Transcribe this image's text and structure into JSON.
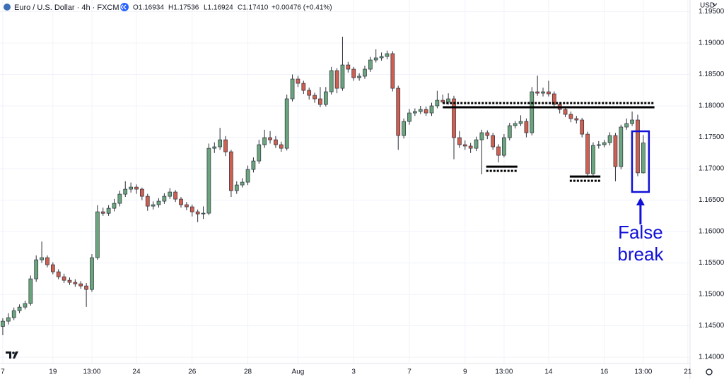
{
  "chart_data": {
    "type": "candlestick",
    "title": "Euro / U.S. Dollar · 4h · FXCM",
    "header_values": [
      "O1.16934",
      "H1.17536",
      "L1.16924",
      "C1.17410",
      "+0.00476 (+0.41%)"
    ],
    "currency": "USD",
    "up_color": "#6aa57d",
    "down_color": "#cf5f50",
    "grid": true,
    "ylim": [
      1.139,
      1.19685
    ],
    "yticks": [
      {
        "value": 1.14,
        "label": "1.14000"
      },
      {
        "value": 1.145,
        "label": "1.14500"
      },
      {
        "value": 1.15,
        "label": "1.15000"
      },
      {
        "value": 1.155,
        "label": "1.15500"
      },
      {
        "value": 1.16,
        "label": "1.16000"
      },
      {
        "value": 1.165,
        "label": "1.16500"
      },
      {
        "value": 1.17,
        "label": "1.17000"
      },
      {
        "value": 1.175,
        "label": "1.17500"
      },
      {
        "value": 1.18,
        "label": "1.18000"
      },
      {
        "value": 1.185,
        "label": "1.18500"
      },
      {
        "value": 1.19,
        "label": "1.19000"
      },
      {
        "value": 1.195,
        "label": "1.19500"
      }
    ],
    "xlim": [
      -0.5,
      123.4
    ],
    "xticks": [
      {
        "value": 0,
        "label": "7"
      },
      {
        "value": 9,
        "label": "19"
      },
      {
        "value": 16,
        "label": "13:00"
      },
      {
        "value": 24,
        "label": "24"
      },
      {
        "value": 34,
        "label": "26"
      },
      {
        "value": 44,
        "label": "28"
      },
      {
        "value": 53,
        "label": "Aug"
      },
      {
        "value": 63,
        "label": "3"
      },
      {
        "value": 73,
        "label": "7"
      },
      {
        "value": 83,
        "label": "9"
      },
      {
        "value": 90,
        "label": "13:00"
      },
      {
        "value": 98,
        "label": "14"
      },
      {
        "value": 108,
        "label": "16"
      },
      {
        "value": 115,
        "label": "13:00"
      },
      {
        "value": 123,
        "label": "21"
      }
    ],
    "ohlc": [
      [
        1.1449,
        1.1462,
        1.1435,
        1.14573
      ],
      [
        1.14573,
        1.147,
        1.1452,
        1.14629
      ],
      [
        1.14629,
        1.1479,
        1.1459,
        1.14741
      ],
      [
        1.14741,
        1.1484,
        1.147,
        1.14797
      ],
      [
        1.14797,
        1.149,
        1.1476,
        1.14854
      ],
      [
        1.14854,
        1.153,
        1.1482,
        1.15247
      ],
      [
        1.15247,
        1.1562,
        1.152,
        1.1555
      ],
      [
        1.1555,
        1.1584,
        1.155,
        1.15584
      ],
      [
        1.15584,
        1.1562,
        1.1543,
        1.15471
      ],
      [
        1.15471,
        1.1551,
        1.1532,
        1.15359
      ],
      [
        1.15359,
        1.154,
        1.1524,
        1.1528
      ],
      [
        1.1528,
        1.1533,
        1.1518,
        1.15224
      ],
      [
        1.15224,
        1.1527,
        1.1515,
        1.15191
      ],
      [
        1.15191,
        1.1524,
        1.1512,
        1.15168
      ],
      [
        1.15168,
        1.1521,
        1.1509,
        1.15134
      ],
      [
        1.15134,
        1.1518,
        1.148,
        1.15078
      ],
      [
        1.15078,
        1.1564,
        1.1504,
        1.15584
      ],
      [
        1.15584,
        1.1642,
        1.1555,
        1.16314
      ],
      [
        1.16314,
        1.1638,
        1.1625,
        1.1629
      ],
      [
        1.1629,
        1.1642,
        1.1625,
        1.1637
      ],
      [
        1.1637,
        1.1652,
        1.1632,
        1.16449
      ],
      [
        1.16449,
        1.1665,
        1.164,
        1.16595
      ],
      [
        1.16595,
        1.168,
        1.1655,
        1.16674
      ],
      [
        1.16674,
        1.1678,
        1.1662,
        1.16707
      ],
      [
        1.16707,
        1.1675,
        1.166,
        1.16674
      ],
      [
        1.16674,
        1.167,
        1.165,
        1.16561
      ],
      [
        1.16561,
        1.166,
        1.1633,
        1.16404
      ],
      [
        1.16404,
        1.1648,
        1.1635,
        1.16427
      ],
      [
        1.16427,
        1.1653,
        1.1638,
        1.16483
      ],
      [
        1.16483,
        1.1661,
        1.1644,
        1.16561
      ],
      [
        1.16561,
        1.1669,
        1.1652,
        1.16629
      ],
      [
        1.16629,
        1.1666,
        1.1647,
        1.16516
      ],
      [
        1.16516,
        1.1655,
        1.1638,
        1.16427
      ],
      [
        1.16427,
        1.1647,
        1.1634,
        1.16393
      ],
      [
        1.16393,
        1.1643,
        1.1624,
        1.16314
      ],
      [
        1.16314,
        1.1635,
        1.1615,
        1.1628
      ],
      [
        1.1628,
        1.164,
        1.162,
        1.16292
      ],
      [
        1.16292,
        1.174,
        1.1626,
        1.17325
      ],
      [
        1.17325,
        1.1742,
        1.1725,
        1.17348
      ],
      [
        1.17348,
        1.1765,
        1.173,
        1.1746
      ],
      [
        1.1746,
        1.1752,
        1.172,
        1.17269
      ],
      [
        1.17269,
        1.173,
        1.1655,
        1.16651
      ],
      [
        1.16651,
        1.168,
        1.166,
        1.16741
      ],
      [
        1.16741,
        1.1685,
        1.167,
        1.16786
      ],
      [
        1.16786,
        1.1705,
        1.1674,
        1.16988
      ],
      [
        1.16988,
        1.1718,
        1.1694,
        1.17123
      ],
      [
        1.17123,
        1.1746,
        1.1708,
        1.17382
      ],
      [
        1.17382,
        1.1762,
        1.1733,
        1.17494
      ],
      [
        1.17494,
        1.176,
        1.174,
        1.1746
      ],
      [
        1.1746,
        1.1752,
        1.1733,
        1.17382
      ],
      [
        1.17382,
        1.1743,
        1.1727,
        1.17325
      ],
      [
        1.17325,
        1.1818,
        1.1729,
        1.18112
      ],
      [
        1.18112,
        1.185,
        1.1807,
        1.18427
      ],
      [
        1.18427,
        1.1848,
        1.183,
        1.18359
      ],
      [
        1.18359,
        1.184,
        1.1819,
        1.18247
      ],
      [
        1.18247,
        1.1829,
        1.181,
        1.18168
      ],
      [
        1.18168,
        1.1821,
        1.1805,
        1.18112
      ],
      [
        1.18112,
        1.183,
        1.1798,
        1.18022
      ],
      [
        1.18022,
        1.183,
        1.1799,
        1.18224
      ],
      [
        1.18224,
        1.1862,
        1.1818,
        1.18561
      ],
      [
        1.18561,
        1.186,
        1.182,
        1.1828
      ],
      [
        1.1828,
        1.191,
        1.1824,
        1.18651
      ],
      [
        1.18651,
        1.187,
        1.1853,
        1.18584
      ],
      [
        1.18584,
        1.1862,
        1.184,
        1.18449
      ],
      [
        1.18449,
        1.1852,
        1.184,
        1.18472
      ],
      [
        1.18472,
        1.1864,
        1.1843,
        1.18584
      ],
      [
        1.18584,
        1.1878,
        1.1854,
        1.1873
      ],
      [
        1.1873,
        1.189,
        1.1869,
        1.18764
      ],
      [
        1.18764,
        1.1885,
        1.1872,
        1.18786
      ],
      [
        1.18786,
        1.1888,
        1.1874,
        1.18831
      ],
      [
        1.18831,
        1.1887,
        1.1823,
        1.1828
      ],
      [
        1.1828,
        1.1832,
        1.173,
        1.17528
      ],
      [
        1.17528,
        1.178,
        1.1748,
        1.17752
      ],
      [
        1.17752,
        1.1795,
        1.177,
        1.17887
      ],
      [
        1.17887,
        1.1796,
        1.1784,
        1.1791
      ],
      [
        1.1791,
        1.18,
        1.1787,
        1.17943
      ],
      [
        1.17943,
        1.1799,
        1.1784,
        1.17887
      ],
      [
        1.17887,
        1.1805,
        1.1784,
        1.18
      ],
      [
        1.18,
        1.1824,
        1.1796,
        1.18089
      ],
      [
        1.18089,
        1.1818,
        1.1804,
        1.1806
      ],
      [
        1.1806,
        1.182,
        1.1802,
        1.18112
      ],
      [
        1.18112,
        1.1816,
        1.1715,
        1.17494
      ],
      [
        1.17494,
        1.176,
        1.1733,
        1.17382
      ],
      [
        1.17382,
        1.1745,
        1.173,
        1.1736
      ],
      [
        1.1736,
        1.1741,
        1.1725,
        1.17325
      ],
      [
        1.17325,
        1.1751,
        1.1728,
        1.1746
      ],
      [
        1.1746,
        1.1762,
        1.1691,
        1.17573
      ],
      [
        1.17573,
        1.1761,
        1.1747,
        1.17528
      ],
      [
        1.17528,
        1.1757,
        1.173,
        1.17348
      ],
      [
        1.17348,
        1.1739,
        1.171,
        1.17213
      ],
      [
        1.17213,
        1.1755,
        1.1718,
        1.17494
      ],
      [
        1.17494,
        1.1773,
        1.1745,
        1.17685
      ],
      [
        1.17685,
        1.1776,
        1.1764,
        1.17719
      ],
      [
        1.17719,
        1.1785,
        1.1768,
        1.17752
      ],
      [
        1.17752,
        1.178,
        1.175,
        1.17573
      ],
      [
        1.17573,
        1.183,
        1.1753,
        1.18224
      ],
      [
        1.18224,
        1.1848,
        1.1816,
        1.18202
      ],
      [
        1.18202,
        1.1829,
        1.1815,
        1.18224
      ],
      [
        1.18224,
        1.184,
        1.1815,
        1.18191
      ],
      [
        1.18191,
        1.1823,
        1.1797,
        1.18022
      ],
      [
        1.18022,
        1.1806,
        1.1788,
        1.17943
      ],
      [
        1.17943,
        1.1799,
        1.1782,
        1.17865
      ],
      [
        1.17865,
        1.1791,
        1.1774,
        1.17797
      ],
      [
        1.17797,
        1.1784,
        1.1772,
        1.17775
      ],
      [
        1.17775,
        1.1781,
        1.175,
        1.1755
      ],
      [
        1.1755,
        1.1759,
        1.1688,
        1.16921
      ],
      [
        1.16921,
        1.1742,
        1.1688,
        1.1737
      ],
      [
        1.1737,
        1.1744,
        1.1732,
        1.17382
      ],
      [
        1.17382,
        1.1746,
        1.1734,
        1.17415
      ],
      [
        1.17415,
        1.1758,
        1.1737,
        1.17528
      ],
      [
        1.17528,
        1.1757,
        1.168,
        1.17033
      ],
      [
        1.17033,
        1.177,
        1.1699,
        1.17663
      ],
      [
        1.17663,
        1.178,
        1.1762,
        1.17719
      ],
      [
        1.17719,
        1.1791,
        1.1768,
        1.17775
      ],
      [
        1.17775,
        1.1786,
        1.1688,
        1.16934
      ],
      [
        1.16934,
        1.17536,
        1.16924,
        1.1741
      ]
    ],
    "levels": [
      {
        "value": 1.17977,
        "from": 79,
        "to": 117,
        "dotted": "above"
      },
      {
        "value": 1.17033,
        "from": 86.8,
        "to": 92.4,
        "dotted": "below"
      },
      {
        "value": 1.16876,
        "from": 101.8,
        "to": 107.3,
        "dotted": "below"
      }
    ],
    "annotation": [
      "False",
      "break"
    ],
    "annotation_color": "#1010d8"
  }
}
